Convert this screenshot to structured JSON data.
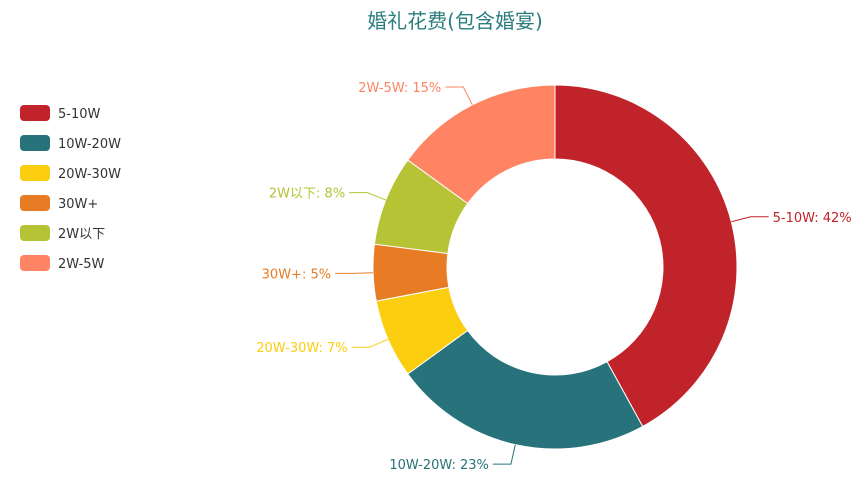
{
  "chart_data": {
    "type": "pie",
    "title": "婚礼花费(包含婚宴)",
    "categories": [
      "5-10W",
      "10W-20W",
      "20W-30W",
      "30W+",
      "2W以下",
      "2W-5W"
    ],
    "values": [
      42,
      23,
      7,
      5,
      8,
      15
    ],
    "unit": "%",
    "colors": [
      "#c1232b",
      "#27727b",
      "#fcce10",
      "#e87c25",
      "#b5c334",
      "#fe8463"
    ],
    "data_labels": [
      "5-10W: 42%",
      "10W-20W: 23%",
      "20W-30W: 7%",
      "30W+: 5%",
      "2W以下: 8%",
      "2W-5W: 15%"
    ],
    "legend_position": "left",
    "donut": true
  }
}
